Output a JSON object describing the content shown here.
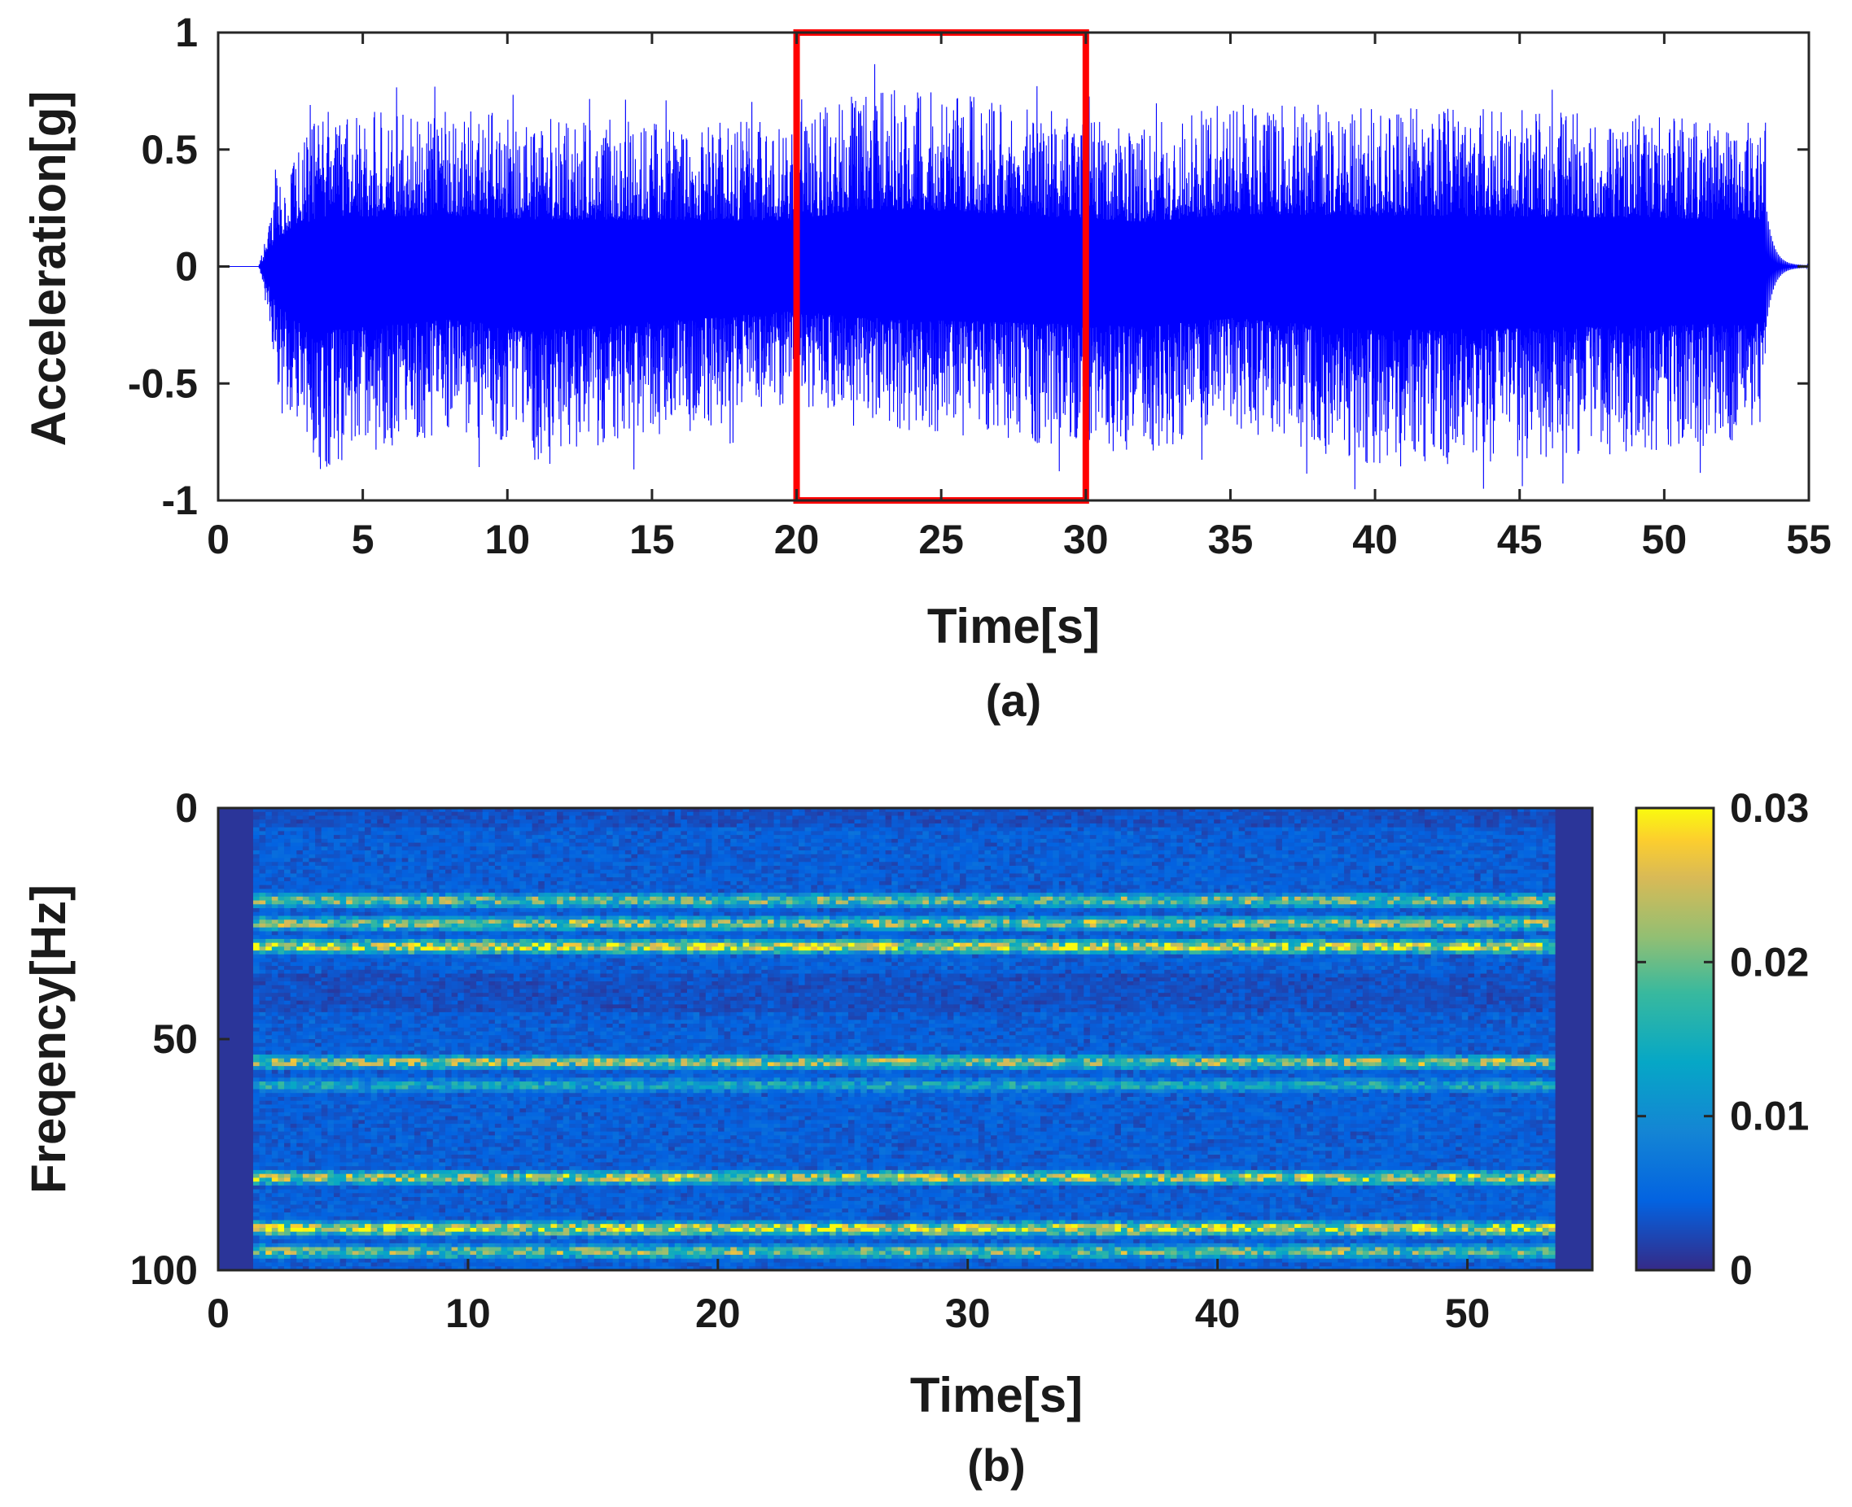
{
  "chart_data": [
    {
      "type": "line",
      "caption": "(a)",
      "xlabel": "Time[s]",
      "ylabel": "Acceleration[g]",
      "xlim": [
        0,
        55
      ],
      "ylim": [
        -1,
        1
      ],
      "x_ticks": [
        "0",
        "5",
        "10",
        "15",
        "20",
        "25",
        "30",
        "35",
        "40",
        "45",
        "50",
        "55"
      ],
      "y_ticks": [
        "1",
        "0.5",
        "0",
        "-0.5",
        "-1"
      ],
      "grid": false,
      "series": [
        {
          "color": "#0000ff",
          "signal_start": 1.4,
          "signal_end": 53.5,
          "envelope": [
            {
              "t": 1.4,
              "upper": 0.3,
              "lower": -0.4
            },
            {
              "t": 3.5,
              "upper": 0.76,
              "lower": -0.99
            },
            {
              "t": 8.1,
              "upper": 0.77,
              "lower": -0.8
            },
            {
              "t": 11.0,
              "upper": 0.72,
              "lower": -0.98
            },
            {
              "t": 20.0,
              "upper": 0.7,
              "lower": -0.68
            },
            {
              "t": 22.1,
              "upper": 0.87,
              "lower": -0.78
            },
            {
              "t": 25.5,
              "upper": 0.84,
              "lower": -0.82
            },
            {
              "t": 32.0,
              "upper": 0.68,
              "lower": -0.92
            },
            {
              "t": 35.0,
              "upper": 0.8,
              "lower": -0.78
            },
            {
              "t": 40.0,
              "upper": 0.78,
              "lower": -0.98
            },
            {
              "t": 50.0,
              "upper": 0.74,
              "lower": -0.9
            },
            {
              "t": 53.5,
              "upper": 0.7,
              "lower": -0.85
            }
          ]
        }
      ],
      "annotation": {
        "shape": "rectangle",
        "color": "#ff0000",
        "x_range": [
          20,
          30
        ],
        "y_range": [
          -1,
          1
        ]
      }
    },
    {
      "type": "heatmap",
      "caption": "(b)",
      "xlabel": "Time[s]",
      "ylabel": "Freqency[Hz]",
      "xlim": [
        0,
        55
      ],
      "ylim": [
        0,
        100
      ],
      "y_reversed": true,
      "x_ticks": [
        "0",
        "10",
        "20",
        "30",
        "40",
        "50"
      ],
      "y_ticks": [
        "0",
        "50",
        "100"
      ],
      "colorbar": {
        "min": 0,
        "max": 0.03,
        "ticks": [
          "0.03",
          "0.02",
          "0.01",
          "0"
        ],
        "colormap": "parula"
      },
      "signal_time_range": [
        1.4,
        53.5
      ],
      "dominant_bands_hz": [
        {
          "freq": 20,
          "value": 0.022
        },
        {
          "freq": 25,
          "value": 0.024
        },
        {
          "freq": 30,
          "value": 0.03
        },
        {
          "freq": 55,
          "value": 0.024
        },
        {
          "freq": 60,
          "value": 0.015
        },
        {
          "freq": 80,
          "value": 0.026
        },
        {
          "freq": 91,
          "value": 0.03
        },
        {
          "freq": 96,
          "value": 0.022
        }
      ]
    }
  ]
}
